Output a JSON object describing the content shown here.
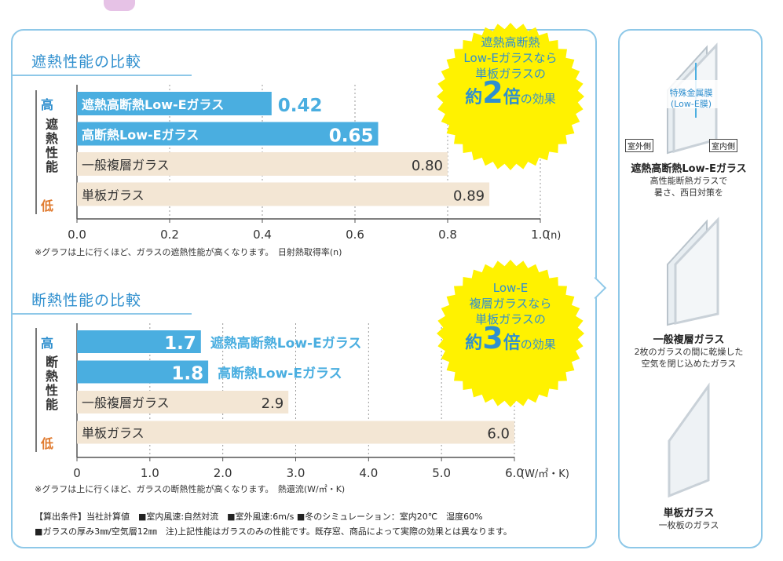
{
  "chart_data": [
    {
      "type": "bar",
      "orientation": "horizontal",
      "title": "遮熱性能の比較",
      "categories": [
        "遮熱高断熱Low-Eガラス",
        "高断熱Low-Eガラス",
        "一般複層ガラス",
        "単板ガラス"
      ],
      "values": [
        0.42,
        0.65,
        0.8,
        0.89
      ],
      "value_labels": [
        "0.42",
        "0.65",
        "0.80",
        "0.89"
      ],
      "bar_colors": [
        "#4aaee0",
        "#4aaee0",
        "#f3e6d4",
        "#f3e6d4"
      ],
      "xlim": [
        0,
        1.0
      ],
      "x_ticks": [
        "0.0",
        "0.2",
        "0.4",
        "0.6",
        "0.8",
        "1.0"
      ],
      "x_unit": "(n)",
      "axis_high": "高",
      "axis_low": "低",
      "axis_name": "遮熱性能",
      "note": "※グラフは上に行くほど、ガラスの遮熱性能が高くなります。　日射熱取得率(n)",
      "grid": true
    },
    {
      "type": "bar",
      "orientation": "horizontal",
      "title": "断熱性能の比較",
      "categories": [
        "遮熱高断熱Low-Eガラス",
        "高断熱Low-Eガラス",
        "一般複層ガラス",
        "単板ガラス"
      ],
      "values": [
        1.7,
        1.8,
        2.9,
        6.0
      ],
      "value_labels": [
        "1.7",
        "1.8",
        "2.9",
        "6.0"
      ],
      "bar_colors": [
        "#4aaee0",
        "#4aaee0",
        "#f3e6d4",
        "#f3e6d4"
      ],
      "xlim": [
        0,
        6.0
      ],
      "x_ticks": [
        "0",
        "1.0",
        "2.0",
        "3.0",
        "4.0",
        "5.0",
        "6.0"
      ],
      "x_unit": "(W/㎡・K)",
      "axis_high": "高",
      "axis_low": "低",
      "axis_name": "断熱性能",
      "note": "※グラフは上に行くほど、ガラスの断熱性能が高くなります。　熱還流(W/㎡・K)",
      "grid": true
    }
  ],
  "badges": [
    {
      "lines": [
        "遮熱高断熱",
        "Low-Eガラスなら",
        "単板ガラスの"
      ],
      "prefix": "約",
      "number": "2",
      "suffix": "倍",
      "tail": "の効果"
    },
    {
      "lines": [
        "Low-E",
        "複層ガラスなら",
        "単板ガラスの"
      ],
      "prefix": "約",
      "number": "3",
      "suffix": "倍",
      "tail": "の効果"
    }
  ],
  "footnotes": [
    "【算出条件】当社計算値　■室内風速:自然対流　■室外風速:6m/s ■冬のシミュレーション：室内20℃　湿度60%",
    "■ガラスの厚み3㎜/空気層12㎜　注)上記性能はガラスのみの性能です。既存窓、商品によって実際の効果とは異なります。"
  ],
  "glass_types": [
    {
      "tag_out": "室外側",
      "tag_in": "室内側",
      "film": "特殊金属膜\n(Low-E膜)",
      "name": "遮熱高断熱Low-Eガラス",
      "desc1": "高性能断熱ガラスで",
      "desc2": "暑さ、西日対策を"
    },
    {
      "name": "一般複層ガラス",
      "desc1": "2枚のガラスの間に乾燥した",
      "desc2": "空気を閉じ込めたガラス"
    },
    {
      "name": "単板ガラス",
      "desc1": "一枚板のガラス",
      "desc2": ""
    }
  ],
  "colors": {
    "accent": "#2f8fce",
    "bar_blue": "#4aaee0",
    "bar_beige": "#f3e6d4",
    "burst": "#fff200",
    "low": "#e07a2e"
  }
}
